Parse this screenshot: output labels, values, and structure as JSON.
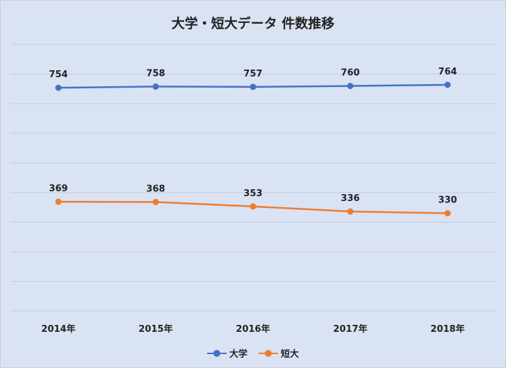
{
  "chart_data": {
    "type": "line",
    "title": "大学・短大データ 件数推移",
    "categories": [
      "2014年",
      "2015年",
      "2016年",
      "2017年",
      "2018年"
    ],
    "series": [
      {
        "name": "大学",
        "values": [
          754,
          758,
          757,
          760,
          764
        ],
        "color": "#4472c4"
      },
      {
        "name": "短大",
        "values": [
          369,
          368,
          353,
          336,
          330
        ],
        "color": "#ed7d31"
      }
    ],
    "xlabel": "",
    "ylabel": "",
    "ylim": [
      0,
      900
    ],
    "grid": true,
    "legend": "bottom"
  }
}
